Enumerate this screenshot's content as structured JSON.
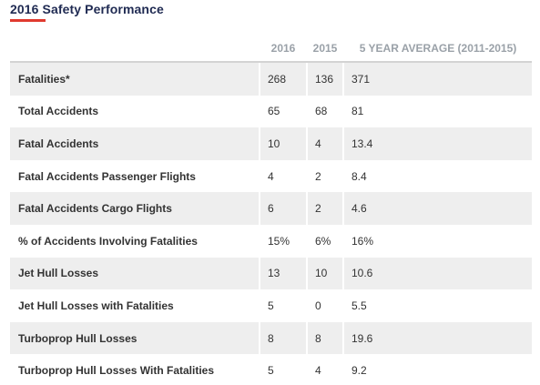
{
  "title": "2016 Safety Performance",
  "colors": {
    "title": "#1f2a52",
    "accent": "#e03a2f",
    "shade": "#eeeeee",
    "header": "#9aa1a8"
  },
  "table": {
    "headers": [
      "",
      "2016",
      "2015",
      "5 YEAR AVERAGE (2011-2015)"
    ],
    "rows": [
      {
        "label": "Fatalities*",
        "y2016": "268",
        "y2015": "136",
        "avg": "371"
      },
      {
        "label": "Total Accidents",
        "y2016": "65",
        "y2015": "68",
        "avg": "81"
      },
      {
        "label": "Fatal Accidents",
        "y2016": "10",
        "y2015": "4",
        "avg": "13.4"
      },
      {
        "label": "Fatal Accidents Passenger Flights",
        "y2016": "4",
        "y2015": "2",
        "avg": "8.4"
      },
      {
        "label": "Fatal Accidents Cargo Flights",
        "y2016": "6",
        "y2015": "2",
        "avg": "4.6"
      },
      {
        "label": "% of Accidents Involving Fatalities",
        "y2016": "15%",
        "y2015": "6%",
        "avg": "16%"
      },
      {
        "label": "Jet Hull Losses",
        "y2016": "13",
        "y2015": "10",
        "avg": "10.6"
      },
      {
        "label": "Jet Hull Losses with Fatalities",
        "y2016": "5",
        "y2015": "0",
        "avg": "5.5"
      },
      {
        "label": "Turboprop Hull Losses",
        "y2016": "8",
        "y2015": "8",
        "avg": "19.6"
      },
      {
        "label": "Turboprop Hull Losses With Fatalities",
        "y2016": "5",
        "y2015": "4",
        "avg": "9.2"
      }
    ]
  }
}
